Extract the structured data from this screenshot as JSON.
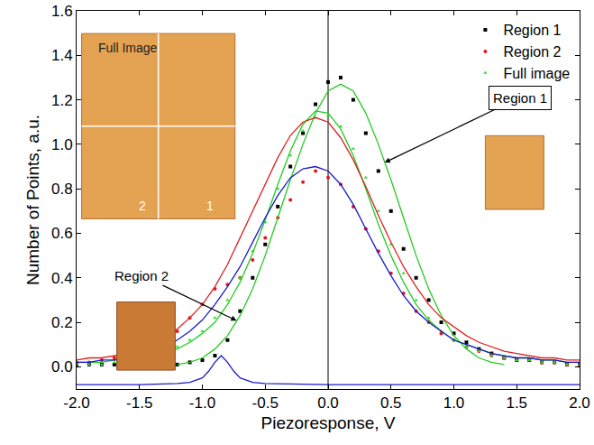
{
  "chart_data": {
    "type": "scatter",
    "x_title": "Piezoresponse, V",
    "y_title": "Number of Points, a.u.",
    "xlim": [
      -2.0,
      2.0
    ],
    "ylim": [
      -0.1,
      1.6
    ],
    "xticks": [
      {
        "value": -2.0,
        "label": "-2.0"
      },
      {
        "value": -1.5,
        "label": "-1.5"
      },
      {
        "value": -1.0,
        "label": "-1.0"
      },
      {
        "value": -0.5,
        "label": "-0.5"
      },
      {
        "value": 0.0,
        "label": "0.0"
      },
      {
        "value": 0.5,
        "label": "0.5"
      },
      {
        "value": 1.0,
        "label": "1.0"
      },
      {
        "value": 1.5,
        "label": "1.5"
      },
      {
        "value": 2.0,
        "label": "2.0"
      }
    ],
    "yticks": [
      {
        "value": 0.0,
        "label": "0.0"
      },
      {
        "value": 0.2,
        "label": "0.2"
      },
      {
        "value": 0.4,
        "label": "0.4"
      },
      {
        "value": 0.6,
        "label": "0.6"
      },
      {
        "value": 0.8,
        "label": "0.8"
      },
      {
        "value": 1.0,
        "label": "1.0"
      },
      {
        "value": 1.2,
        "label": "1.2"
      },
      {
        "value": 1.4,
        "label": "1.4"
      },
      {
        "value": 1.6,
        "label": "1.6"
      }
    ],
    "grid": false,
    "legend": "top right",
    "vertical_line_x": 0.0,
    "annotations": [
      "Full Image",
      "2",
      "1",
      "Region 1",
      "Region 2"
    ],
    "x": [
      -2.0,
      -1.9,
      -1.8,
      -1.7,
      -1.6,
      -1.5,
      -1.4,
      -1.3,
      -1.2,
      -1.1,
      -1.0,
      -0.9,
      -0.8,
      -0.7,
      -0.6,
      -0.5,
      -0.4,
      -0.3,
      -0.2,
      -0.1,
      0.0,
      0.1,
      0.2,
      0.3,
      0.4,
      0.5,
      0.6,
      0.7,
      0.8,
      0.9,
      1.0,
      1.1,
      1.2,
      1.3,
      1.4,
      1.5,
      1.6,
      1.7,
      1.8,
      1.9,
      2.0
    ],
    "series": [
      {
        "type": "line",
        "color": "#22cc22",
        "line_style": "solid",
        "values": [
          null,
          null,
          null,
          null,
          null,
          null,
          null,
          null,
          0.01,
          0.02,
          0.04,
          0.08,
          0.14,
          0.23,
          0.35,
          0.5,
          0.67,
          0.84,
          1.0,
          1.14,
          1.24,
          1.27,
          1.24,
          1.14,
          1.0,
          0.84,
          0.67,
          0.5,
          0.35,
          0.23,
          0.14,
          0.08,
          0.04,
          0.02,
          0.01,
          null,
          null,
          null,
          null,
          null,
          null
        ]
      },
      {
        "type": "line",
        "color": "#22cc22",
        "line_style": "solid",
        "values": [
          0.02,
          0.02,
          0.02,
          0.03,
          0.03,
          0.04,
          0.05,
          0.06,
          0.08,
          0.11,
          0.15,
          0.2,
          0.28,
          0.38,
          0.51,
          0.66,
          0.82,
          0.97,
          1.09,
          1.15,
          1.14,
          1.07,
          0.95,
          0.8,
          0.64,
          0.5,
          0.38,
          0.28,
          0.21,
          0.16,
          0.12,
          0.1,
          0.08,
          0.06,
          0.05,
          0.04,
          0.04,
          0.03,
          0.03,
          0.02,
          0.02
        ]
      },
      {
        "type": "line",
        "color": "#dd2222",
        "line_style": "solid",
        "values": [
          0.03,
          0.04,
          0.04,
          0.05,
          0.06,
          0.08,
          0.1,
          0.13,
          0.17,
          0.22,
          0.28,
          0.36,
          0.46,
          0.58,
          0.7,
          0.82,
          0.94,
          1.04,
          1.1,
          1.12,
          1.1,
          1.03,
          0.93,
          0.81,
          0.68,
          0.56,
          0.45,
          0.36,
          0.28,
          0.22,
          0.18,
          0.14,
          0.11,
          0.09,
          0.07,
          0.06,
          0.05,
          0.04,
          0.04,
          0.03,
          0.03
        ]
      },
      {
        "type": "line",
        "color": "#1a1acc",
        "line_style": "solid",
        "values": [
          0.02,
          0.02,
          0.03,
          0.03,
          0.04,
          0.05,
          0.07,
          0.09,
          0.12,
          0.16,
          0.21,
          0.28,
          0.36,
          0.45,
          0.56,
          0.67,
          0.77,
          0.85,
          0.89,
          0.9,
          0.88,
          0.82,
          0.73,
          0.62,
          0.51,
          0.41,
          0.32,
          0.25,
          0.2,
          0.16,
          0.12,
          0.1,
          0.08,
          0.06,
          0.05,
          0.04,
          0.04,
          0.03,
          0.03,
          0.02,
          0.02
        ]
      },
      {
        "type": "line",
        "color": "#1a1acc",
        "line_style": "solid",
        "x": [
          -2.0,
          -1.5,
          -1.2,
          -1.1,
          -1.0,
          -0.95,
          -0.9,
          -0.85,
          -0.8,
          -0.75,
          -0.7,
          -0.6,
          -0.5,
          0.0,
          1.0,
          2.0
        ],
        "values": [
          -0.08,
          -0.08,
          -0.075,
          -0.07,
          -0.05,
          -0.02,
          0.02,
          0.05,
          0.02,
          -0.02,
          -0.05,
          -0.07,
          -0.075,
          -0.08,
          -0.08,
          -0.08
        ]
      },
      {
        "name": "Region 1",
        "type": "scatter",
        "color": "#000000",
        "marker": "square",
        "values": [
          0.01,
          0.01,
          0.01,
          0.01,
          0.01,
          0.01,
          0.01,
          0.01,
          0.01,
          0.02,
          0.03,
          0.05,
          0.12,
          0.25,
          0.4,
          0.55,
          0.72,
          0.9,
          1.05,
          1.18,
          1.28,
          1.3,
          1.2,
          1.05,
          0.88,
          0.7,
          0.53,
          0.4,
          0.3,
          0.2,
          0.15,
          0.11,
          0.08,
          0.06,
          0.04,
          0.03,
          0.03,
          0.02,
          0.02,
          0.01,
          0.01
        ]
      },
      {
        "name": "Region 2",
        "type": "scatter",
        "color": "#e8121a",
        "marker": "circle",
        "values": [
          0.02,
          0.02,
          0.03,
          0.04,
          0.05,
          0.06,
          0.08,
          0.11,
          0.16,
          0.22,
          0.28,
          0.35,
          0.37,
          0.4,
          0.48,
          0.58,
          0.67,
          0.75,
          0.83,
          0.88,
          0.85,
          0.82,
          0.72,
          0.62,
          0.52,
          0.42,
          0.33,
          0.25,
          0.2,
          0.15,
          0.12,
          0.09,
          0.07,
          0.05,
          0.04,
          0.03,
          0.03,
          0.02,
          0.02,
          0.01,
          0.01
        ]
      },
      {
        "name": "Full image",
        "type": "scatter",
        "color": "#33dd33",
        "marker": "triangle-up",
        "values": [
          0.01,
          0.01,
          0.01,
          0.02,
          0.03,
          0.04,
          0.05,
          0.07,
          0.09,
          0.12,
          0.16,
          0.22,
          0.3,
          0.4,
          0.52,
          0.65,
          0.8,
          0.95,
          1.06,
          1.12,
          1.13,
          1.08,
          0.98,
          0.85,
          0.7,
          0.55,
          0.42,
          0.3,
          0.22,
          0.16,
          0.12,
          0.09,
          0.07,
          0.05,
          0.04,
          0.03,
          0.03,
          0.02,
          0.02,
          0.01,
          0.01
        ]
      }
    ]
  }
}
